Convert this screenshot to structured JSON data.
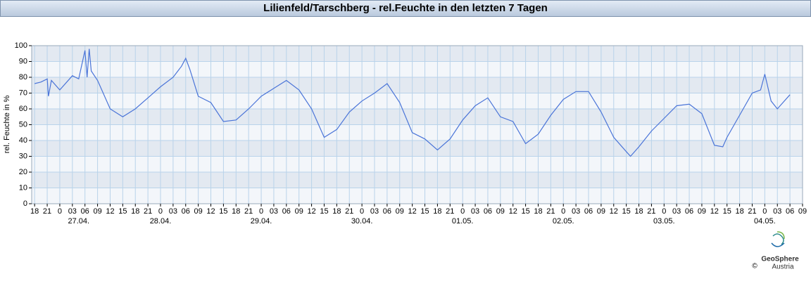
{
  "chart_data": {
    "type": "line",
    "title": "Lilienfeld/Tarschberg - rel.Feuchte in den letzten 7 Tagen",
    "y_label": "rel. Feuchte in %",
    "color": "#4a74d8",
    "grid": true,
    "ylim": [
      0,
      100
    ],
    "yticks": [
      0,
      10,
      20,
      30,
      40,
      50,
      60,
      70,
      80,
      90,
      100
    ],
    "xlim": [
      -0.7,
      183
    ],
    "xticks": [
      {
        "value": 0,
        "label": "18"
      },
      {
        "value": 3,
        "label": "21"
      },
      {
        "value": 6,
        "label": "0"
      },
      {
        "value": 9,
        "label": "03"
      },
      {
        "value": 12,
        "label": "06"
      },
      {
        "value": 15,
        "label": "09"
      },
      {
        "value": 18,
        "label": "12"
      },
      {
        "value": 21,
        "label": "15"
      },
      {
        "value": 24,
        "label": "18"
      },
      {
        "value": 27,
        "label": "21"
      },
      {
        "value": 30,
        "label": "0"
      },
      {
        "value": 33,
        "label": "03"
      },
      {
        "value": 36,
        "label": "06"
      },
      {
        "value": 39,
        "label": "09"
      },
      {
        "value": 42,
        "label": "12"
      },
      {
        "value": 45,
        "label": "15"
      },
      {
        "value": 48,
        "label": "18"
      },
      {
        "value": 51,
        "label": "21"
      },
      {
        "value": 54,
        "label": "0"
      },
      {
        "value": 57,
        "label": "03"
      },
      {
        "value": 60,
        "label": "06"
      },
      {
        "value": 63,
        "label": "09"
      },
      {
        "value": 66,
        "label": "12"
      },
      {
        "value": 69,
        "label": "15"
      },
      {
        "value": 72,
        "label": "18"
      },
      {
        "value": 75,
        "label": "21"
      },
      {
        "value": 78,
        "label": "0"
      },
      {
        "value": 81,
        "label": "03"
      },
      {
        "value": 84,
        "label": "06"
      },
      {
        "value": 87,
        "label": "09"
      },
      {
        "value": 90,
        "label": "12"
      },
      {
        "value": 93,
        "label": "15"
      },
      {
        "value": 96,
        "label": "18"
      },
      {
        "value": 99,
        "label": "21"
      },
      {
        "value": 102,
        "label": "0"
      },
      {
        "value": 105,
        "label": "03"
      },
      {
        "value": 108,
        "label": "06"
      },
      {
        "value": 111,
        "label": "09"
      },
      {
        "value": 114,
        "label": "12"
      },
      {
        "value": 117,
        "label": "15"
      },
      {
        "value": 120,
        "label": "18"
      },
      {
        "value": 123,
        "label": "21"
      },
      {
        "value": 126,
        "label": "0"
      },
      {
        "value": 129,
        "label": "03"
      },
      {
        "value": 132,
        "label": "06"
      },
      {
        "value": 135,
        "label": "09"
      },
      {
        "value": 138,
        "label": "12"
      },
      {
        "value": 141,
        "label": "15"
      },
      {
        "value": 144,
        "label": "18"
      },
      {
        "value": 147,
        "label": "21"
      },
      {
        "value": 150,
        "label": "0"
      },
      {
        "value": 153,
        "label": "03"
      },
      {
        "value": 156,
        "label": "06"
      },
      {
        "value": 159,
        "label": "09"
      },
      {
        "value": 162,
        "label": "12"
      },
      {
        "value": 165,
        "label": "15"
      },
      {
        "value": 168,
        "label": "18"
      },
      {
        "value": 171,
        "label": "21"
      },
      {
        "value": 174,
        "label": "0"
      },
      {
        "value": 177,
        "label": "03"
      },
      {
        "value": 180,
        "label": "06"
      },
      {
        "value": 183,
        "label": "09"
      }
    ],
    "date_labels": [
      {
        "value": 10.5,
        "label": "27.04."
      },
      {
        "value": 30,
        "label": "28.04."
      },
      {
        "value": 54,
        "label": "29.04."
      },
      {
        "value": 78,
        "label": "30.04."
      },
      {
        "value": 102,
        "label": "01.05."
      },
      {
        "value": 126,
        "label": "02.05."
      },
      {
        "value": 150,
        "label": "03.05."
      },
      {
        "value": 174,
        "label": "04.05."
      }
    ],
    "x": [
      0,
      1.5,
      3,
      3.3,
      4,
      6,
      9,
      10.5,
      12,
      12.5,
      13,
      13.5,
      15,
      18,
      21,
      24,
      27,
      30,
      33,
      35,
      36,
      37,
      39,
      42,
      45,
      48,
      51,
      54,
      57,
      60,
      63,
      66,
      69,
      72,
      75,
      78,
      81,
      84,
      87,
      90,
      93,
      96,
      99,
      102,
      105,
      108,
      111,
      114,
      117,
      120,
      123,
      126,
      129,
      132,
      135,
      138,
      141,
      142,
      144,
      147,
      150,
      153,
      156,
      159,
      162,
      164,
      165,
      168,
      171,
      173,
      174,
      175.5,
      177,
      180
    ],
    "values": [
      76,
      77,
      79,
      68,
      78,
      72,
      81,
      79,
      97,
      80,
      98,
      84,
      78,
      60,
      55,
      60,
      67,
      74,
      80,
      87,
      92,
      85,
      68,
      64,
      52,
      53,
      60,
      68,
      73,
      78,
      72,
      60,
      42,
      47,
      58,
      65,
      70,
      76,
      64,
      45,
      41,
      34,
      41,
      53,
      62,
      67,
      55,
      52,
      38,
      44,
      56,
      66,
      71,
      71,
      58,
      42,
      33,
      30,
      36,
      46,
      54,
      62,
      63,
      57,
      37,
      36,
      42,
      56,
      70,
      72,
      82,
      65,
      60,
      69
    ]
  },
  "logo": {
    "name": "GeoSphere",
    "sub": "Austria",
    "copyright": "©"
  }
}
